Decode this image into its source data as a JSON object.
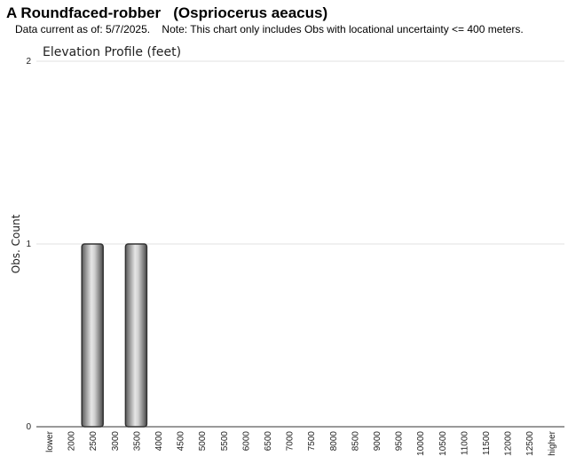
{
  "header": {
    "title": "A Roundfaced-robber   (Ospriocerus aeacus)",
    "subtitle": "Data current as of: 5/7/2025.    Note: This chart only includes Obs with locational uncertainty <= 400 meters."
  },
  "chart_data": {
    "type": "bar",
    "title": "Elevation Profile (feet)",
    "xlabel": "",
    "ylabel": "Obs. Count",
    "ylim": [
      0,
      2
    ],
    "yticks": [
      0,
      1,
      2
    ],
    "grid": true,
    "categories": [
      "lower",
      "2000",
      "2500",
      "3000",
      "3500",
      "4000",
      "4500",
      "5000",
      "5500",
      "6000",
      "6500",
      "7000",
      "7500",
      "8000",
      "8500",
      "9000",
      "9500",
      "10000",
      "10500",
      "11000",
      "11500",
      "12000",
      "12500",
      "higher"
    ],
    "values": [
      0,
      0,
      1,
      0,
      1,
      0,
      0,
      0,
      0,
      0,
      0,
      0,
      0,
      0,
      0,
      0,
      0,
      0,
      0,
      0,
      0,
      0,
      0,
      0
    ]
  }
}
